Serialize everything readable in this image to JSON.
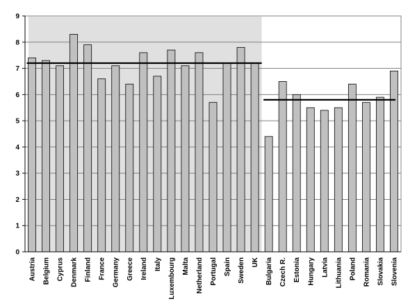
{
  "chart_data": {
    "type": "bar",
    "title": "",
    "xlabel": "",
    "ylabel": "",
    "ylim": [
      0,
      9
    ],
    "yticks": [
      0,
      1,
      2,
      3,
      4,
      5,
      6,
      7,
      8,
      9
    ],
    "grid": true,
    "categories": [
      "Austria",
      "Belgium",
      "Cyprus",
      "Denmark",
      "Finland",
      "France",
      "Germany",
      "Greece",
      "Ireland",
      "Italy",
      "Luxembourg",
      "Malta",
      "Netherland",
      "Portugal",
      "Spain",
      "Sweden",
      "UK",
      "Bulgaria",
      "Czech R.",
      "Estonia",
      "Hungary",
      "Latvia",
      "Lithuania",
      "Poland",
      "Romania",
      "Slovakia",
      "Slovenia"
    ],
    "values": [
      7.4,
      7.3,
      7.1,
      8.3,
      7.9,
      6.6,
      7.1,
      6.4,
      7.6,
      6.7,
      7.7,
      7.1,
      7.6,
      5.7,
      7.2,
      7.8,
      7.2,
      4.4,
      6.5,
      6.0,
      5.5,
      5.4,
      5.5,
      6.4,
      5.7,
      5.9,
      6.9
    ],
    "groups": [
      {
        "from": 0,
        "to": 16,
        "average": 7.2,
        "shaded": true
      },
      {
        "from": 17,
        "to": 26,
        "average": 5.8,
        "shaded": false
      }
    ],
    "colors": {
      "bar_fill": "#c0c0c0",
      "bar_stroke": "#000000",
      "shade": "#e0e0e0",
      "gridline": "#808080",
      "average_line": "#000000"
    }
  }
}
